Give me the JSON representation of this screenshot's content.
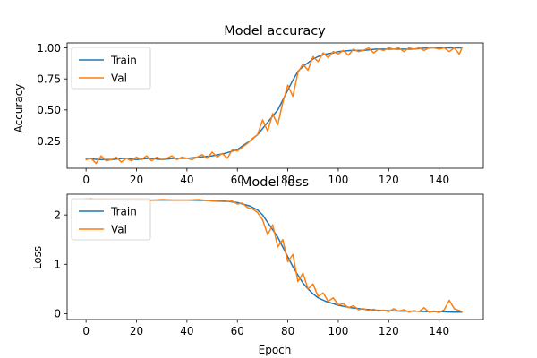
{
  "colors": {
    "train": "#1f77b4",
    "val": "#ff7f0e"
  },
  "chart_data": [
    {
      "type": "line",
      "title": "Model accuracy",
      "xlabel": "",
      "ylabel": "Accuracy",
      "xlim": [
        -7.5,
        157.5
      ],
      "ylim": [
        0.03,
        1.04
      ],
      "xticks": [
        0,
        20,
        40,
        60,
        80,
        100,
        120,
        140
      ],
      "xtick_labels": [
        "0",
        "20",
        "40",
        "60",
        "80",
        "100",
        "120",
        "140"
      ],
      "yticks": [
        0.25,
        0.5,
        0.75,
        1.0
      ],
      "ytick_labels": [
        "0.25",
        "0.50",
        "0.75",
        "1.00"
      ],
      "grid": false,
      "legend_position": "top-left",
      "series": [
        {
          "name": "Train",
          "x": [
            0,
            5,
            10,
            15,
            20,
            25,
            30,
            35,
            40,
            45,
            50,
            55,
            60,
            62,
            65,
            68,
            70,
            72,
            74,
            76,
            78,
            80,
            82,
            84,
            86,
            88,
            90,
            92,
            95,
            98,
            100,
            105,
            110,
            115,
            120,
            125,
            130,
            135,
            140,
            145,
            149
          ],
          "y": [
            0.11,
            0.1,
            0.1,
            0.11,
            0.1,
            0.11,
            0.1,
            0.11,
            0.11,
            0.12,
            0.13,
            0.15,
            0.18,
            0.21,
            0.25,
            0.3,
            0.35,
            0.4,
            0.45,
            0.5,
            0.58,
            0.66,
            0.74,
            0.81,
            0.85,
            0.88,
            0.91,
            0.93,
            0.95,
            0.96,
            0.97,
            0.98,
            0.98,
            0.99,
            0.99,
            0.99,
            0.99,
            1.0,
            1.0,
            1.0,
            1.0
          ]
        },
        {
          "name": "Val",
          "x": [
            0,
            2,
            4,
            6,
            8,
            10,
            12,
            14,
            16,
            18,
            20,
            22,
            24,
            26,
            28,
            30,
            32,
            34,
            36,
            38,
            40,
            42,
            44,
            46,
            48,
            50,
            52,
            54,
            56,
            58,
            60,
            62,
            64,
            66,
            68,
            70,
            72,
            74,
            76,
            78,
            80,
            82,
            84,
            86,
            88,
            90,
            92,
            94,
            96,
            98,
            100,
            102,
            104,
            106,
            108,
            110,
            112,
            114,
            116,
            118,
            120,
            122,
            124,
            126,
            128,
            130,
            132,
            134,
            136,
            138,
            140,
            142,
            144,
            146,
            148,
            149
          ],
          "y": [
            0.1,
            0.11,
            0.07,
            0.13,
            0.09,
            0.1,
            0.12,
            0.08,
            0.11,
            0.09,
            0.12,
            0.1,
            0.13,
            0.09,
            0.12,
            0.1,
            0.11,
            0.13,
            0.1,
            0.12,
            0.11,
            0.1,
            0.12,
            0.14,
            0.11,
            0.16,
            0.12,
            0.15,
            0.11,
            0.18,
            0.17,
            0.2,
            0.23,
            0.27,
            0.3,
            0.42,
            0.33,
            0.47,
            0.38,
            0.56,
            0.7,
            0.61,
            0.8,
            0.87,
            0.82,
            0.93,
            0.89,
            0.96,
            0.92,
            0.97,
            0.95,
            0.98,
            0.94,
            0.99,
            0.97,
            0.98,
            1.0,
            0.96,
            0.99,
            0.98,
            1.0,
            0.99,
            1.0,
            0.97,
            1.0,
            0.99,
            1.0,
            0.98,
            1.0,
            1.0,
            0.99,
            1.0,
            0.97,
            1.0,
            0.95,
            1.0
          ]
        }
      ]
    },
    {
      "type": "line",
      "title": "Model loss",
      "xlabel": "Epoch",
      "ylabel": "Loss",
      "xlim": [
        -7.5,
        157.5
      ],
      "ylim": [
        -0.12,
        2.42
      ],
      "xticks": [
        0,
        20,
        40,
        60,
        80,
        100,
        120,
        140
      ],
      "xtick_labels": [
        "0",
        "20",
        "40",
        "60",
        "80",
        "100",
        "120",
        "140"
      ],
      "yticks": [
        0,
        1,
        2
      ],
      "ytick_labels": [
        "0",
        "1",
        "2"
      ],
      "grid": false,
      "legend_position": "top-left",
      "series": [
        {
          "name": "Train",
          "x": [
            0,
            10,
            20,
            30,
            40,
            50,
            55,
            60,
            65,
            68,
            70,
            72,
            74,
            76,
            78,
            80,
            82,
            84,
            86,
            88,
            90,
            92,
            95,
            100,
            105,
            110,
            115,
            120,
            125,
            130,
            135,
            140,
            145,
            149
          ],
          "y": [
            2.31,
            2.31,
            2.3,
            2.3,
            2.3,
            2.29,
            2.28,
            2.25,
            2.18,
            2.1,
            2.0,
            1.85,
            1.7,
            1.55,
            1.35,
            1.15,
            0.95,
            0.78,
            0.62,
            0.5,
            0.4,
            0.32,
            0.25,
            0.17,
            0.12,
            0.09,
            0.07,
            0.06,
            0.05,
            0.05,
            0.04,
            0.04,
            0.03,
            0.03
          ]
        },
        {
          "name": "Val",
          "x": [
            0,
            2,
            4,
            6,
            8,
            10,
            15,
            20,
            25,
            30,
            35,
            40,
            45,
            50,
            55,
            58,
            60,
            62,
            64,
            66,
            68,
            70,
            72,
            74,
            76,
            78,
            80,
            82,
            84,
            86,
            88,
            90,
            92,
            94,
            96,
            98,
            100,
            102,
            104,
            106,
            108,
            110,
            112,
            114,
            116,
            118,
            120,
            122,
            124,
            126,
            128,
            130,
            132,
            134,
            136,
            138,
            140,
            142,
            144,
            146,
            148,
            149
          ],
          "y": [
            2.32,
            2.33,
            2.31,
            2.3,
            2.32,
            2.31,
            2.3,
            2.31,
            2.29,
            2.31,
            2.3,
            2.3,
            2.31,
            2.28,
            2.27,
            2.28,
            2.22,
            2.24,
            2.15,
            2.12,
            2.05,
            1.9,
            1.6,
            1.8,
            1.35,
            1.5,
            1.05,
            1.2,
            0.65,
            0.82,
            0.5,
            0.6,
            0.35,
            0.42,
            0.25,
            0.32,
            0.18,
            0.2,
            0.12,
            0.16,
            0.08,
            0.1,
            0.06,
            0.09,
            0.05,
            0.07,
            0.04,
            0.1,
            0.05,
            0.08,
            0.03,
            0.06,
            0.04,
            0.12,
            0.03,
            0.05,
            0.02,
            0.08,
            0.27,
            0.1,
            0.06,
            0.04
          ]
        }
      ]
    }
  ]
}
